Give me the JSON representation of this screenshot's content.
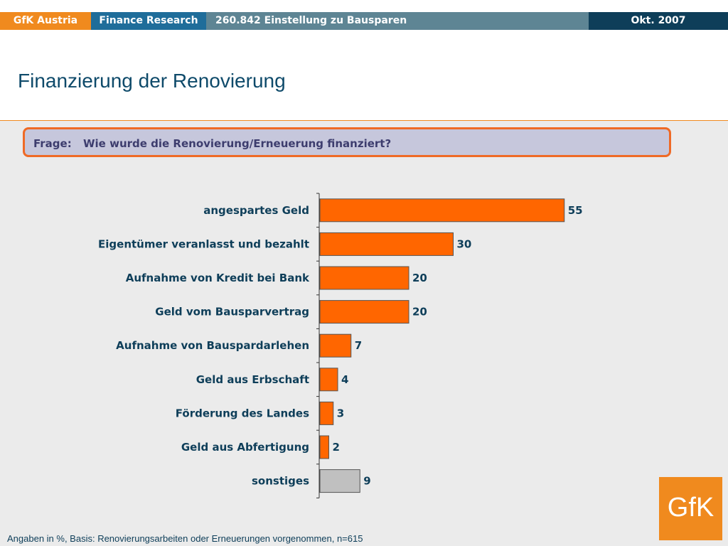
{
  "header": {
    "brand": "GfK Austria",
    "section": "Finance Research",
    "study": "260.842 Einstellung zu Bausparen",
    "date": "Okt. 2007"
  },
  "page_title": "Finanzierung der Renovierung",
  "question": {
    "label": "Frage:",
    "text": "Wie wurde die Renovierung/Erneuerung finanziert?"
  },
  "footnote": "Angaben in %, Basis: Renovierungsarbeiten oder Erneuerungen vorgenommen, n=615",
  "logo": {
    "text": "GfK"
  },
  "colors": {
    "bar": "#ff6600",
    "bar_other": "#c0c0c0",
    "accent": "#f08a1e",
    "text": "#0e3e59"
  },
  "chart_data": {
    "type": "bar",
    "orientation": "horizontal",
    "categories": [
      "angespartes Geld",
      "Eigentümer veranlasst und bezahlt",
      "Aufnahme von Kredit bei Bank",
      "Geld vom Bausparvertrag",
      "Aufnahme von Bauspardarlehen",
      "Geld aus Erbschaft",
      "Förderung des Landes",
      "Geld aus Abfertigung",
      "sonstiges"
    ],
    "values": [
      55,
      30,
      20,
      20,
      7,
      4,
      3,
      2,
      9
    ],
    "xlim": [
      0,
      100
    ],
    "grid": false,
    "legend": "none"
  }
}
